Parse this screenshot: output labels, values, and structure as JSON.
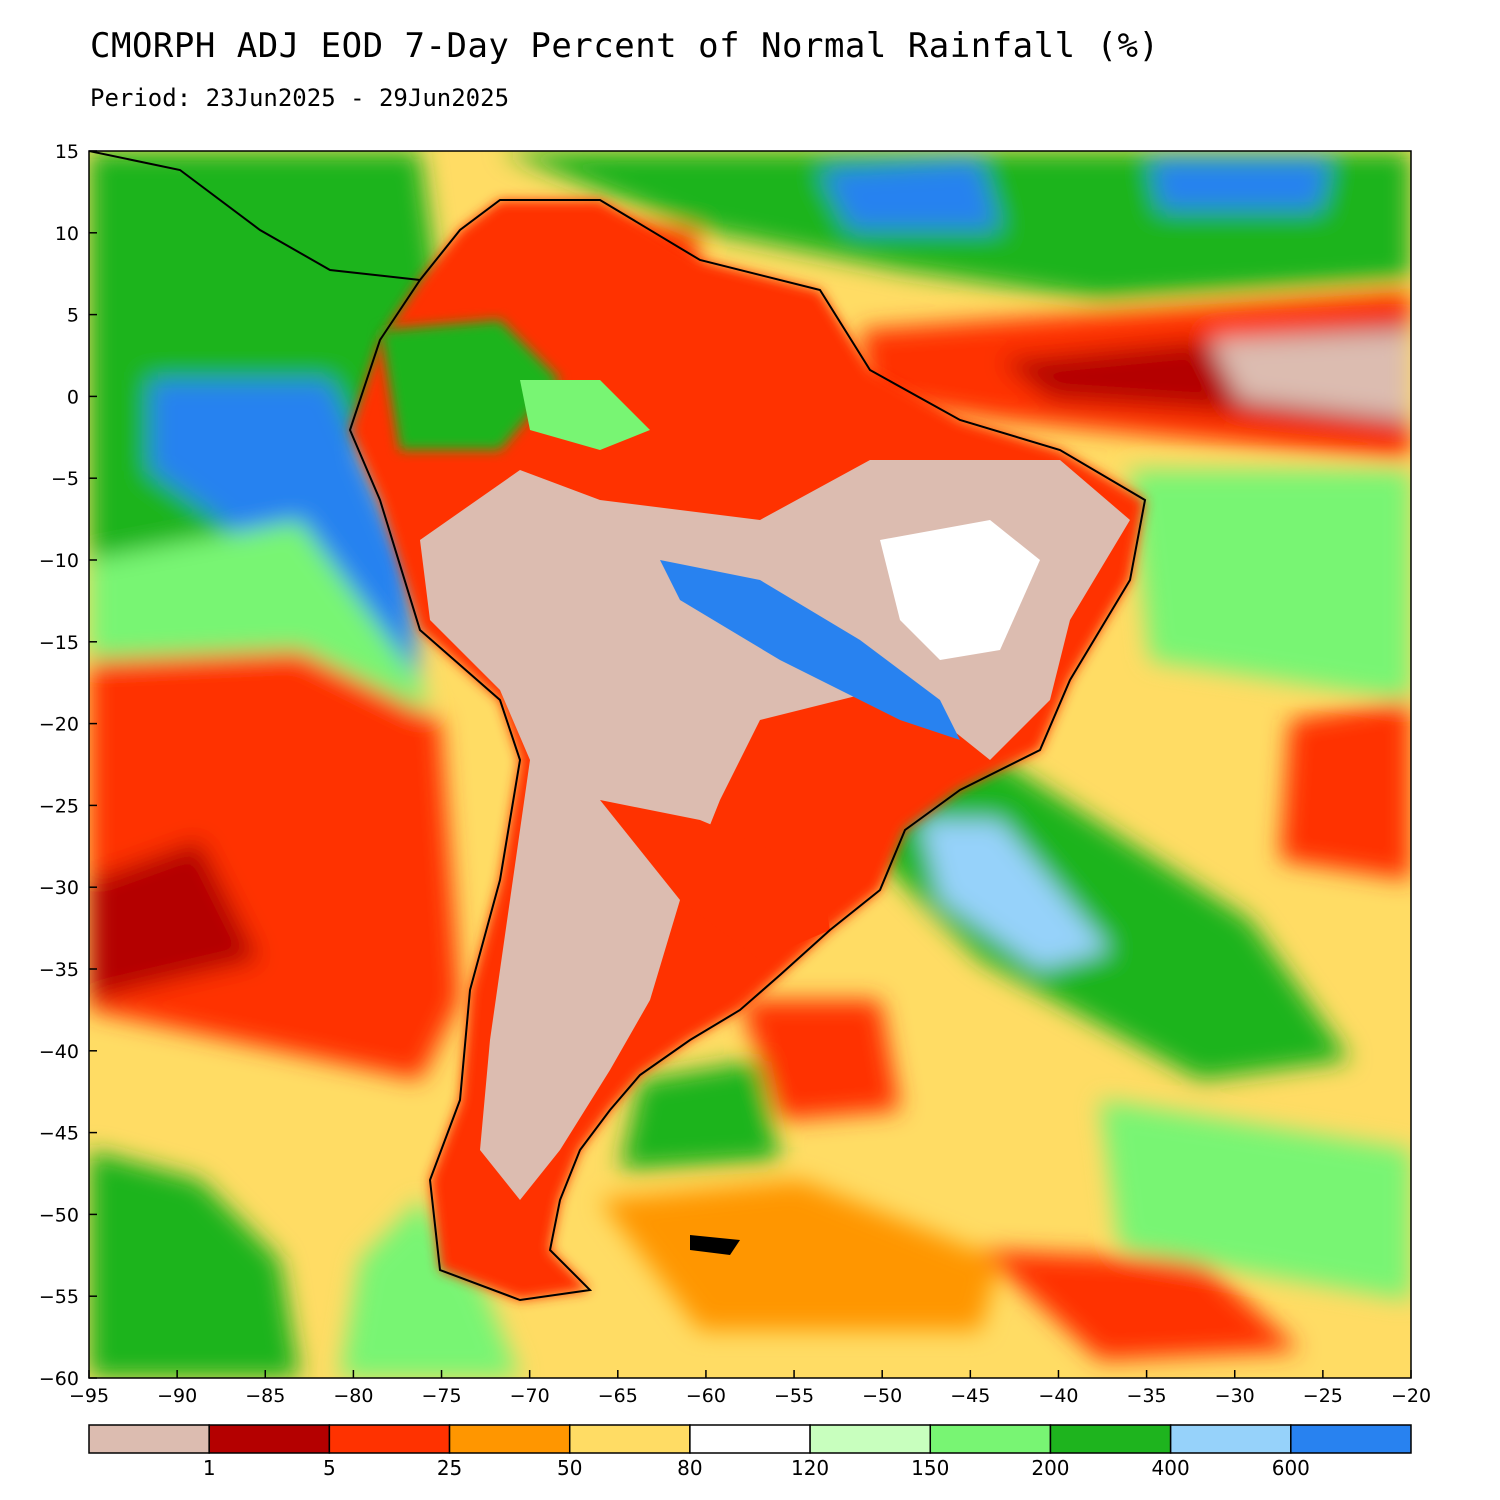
{
  "title": "CMORPH ADJ EOD 7-Day Percent of Normal Rainfall (%)",
  "subtitle": "Period: 23Jun2025 - 29Jun2025",
  "map": {
    "lon_range": [
      -95,
      -20
    ],
    "lat_range": [
      -60,
      15
    ],
    "x_ticks": [
      "-95",
      "-90",
      "-85",
      "-80",
      "-75",
      "-70",
      "-65",
      "-60",
      "-55",
      "-50",
      "-45",
      "-40",
      "-35",
      "-30",
      "-25",
      "-20"
    ],
    "y_ticks": [
      "15",
      "10",
      "5",
      "0",
      "-5",
      "-10",
      "-15",
      "-20",
      "-25",
      "-30",
      "-35",
      "-40",
      "-45",
      "-50",
      "-55",
      "-60"
    ]
  },
  "colorbar": {
    "colors": [
      "#dcbcb0",
      "#b40000",
      "#ff3200",
      "#ff9600",
      "#ffdc64",
      "#ffffff",
      "#c8ffbe",
      "#78f573",
      "#1eb41e",
      "#96d2fa",
      "#2882f0"
    ],
    "labels": [
      "1",
      "5",
      "25",
      "50",
      "80",
      "120",
      "150",
      "200",
      "400",
      "600"
    ]
  }
}
